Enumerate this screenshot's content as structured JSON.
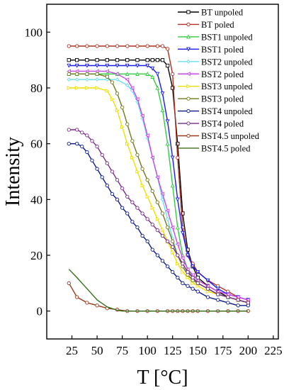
{
  "chart_data": {
    "type": "line",
    "xlabel": "T [°C]",
    "ylabel": "Intensity",
    "xlim": [
      0,
      230
    ],
    "ylim": [
      -10,
      110
    ],
    "xticks": [
      25,
      50,
      75,
      100,
      125,
      150,
      175,
      200,
      225
    ],
    "yticks": [
      0,
      20,
      40,
      60,
      80,
      100
    ],
    "grid": false,
    "legend_position": "top-right",
    "series": [
      {
        "name": "BT unpoled",
        "color": "#000000",
        "marker": "square",
        "x": [
          22,
          30,
          40,
          50,
          60,
          70,
          80,
          90,
          100,
          105,
          110,
          115,
          120,
          125,
          130,
          135,
          140,
          145,
          150,
          160,
          170,
          180,
          190,
          200
        ],
        "y": [
          90,
          90,
          90,
          90,
          90,
          90,
          90,
          90,
          90,
          90,
          90,
          90,
          88,
          80,
          60,
          35,
          22,
          16,
          12,
          9,
          7,
          5,
          4,
          3
        ]
      },
      {
        "name": "BT poled",
        "color": "#b03020",
        "marker": "circle",
        "x": [
          22,
          30,
          40,
          50,
          60,
          70,
          80,
          90,
          100,
          110,
          115,
          120,
          125,
          130,
          135,
          140,
          145,
          150,
          160,
          170,
          180,
          190,
          200
        ],
        "y": [
          95,
          95,
          95,
          95,
          95,
          95,
          95,
          95,
          95,
          95,
          95,
          94,
          85,
          55,
          30,
          20,
          17,
          14,
          11,
          9,
          7,
          5,
          4
        ]
      },
      {
        "name": "BST1 unpoled",
        "color": "#2ecc40",
        "marker": "triangle",
        "x": [
          22,
          30,
          40,
          50,
          60,
          70,
          80,
          90,
          100,
          105,
          110,
          115,
          120,
          125,
          130,
          135,
          140,
          145,
          150,
          160,
          170,
          180,
          190,
          200
        ],
        "y": [
          85,
          85,
          85,
          85,
          85,
          85,
          85,
          85,
          85,
          84,
          80,
          72,
          60,
          45,
          30,
          20,
          15,
          12,
          10,
          8,
          6,
          5,
          4,
          3
        ]
      },
      {
        "name": "BST1 poled",
        "color": "#1a1aee",
        "marker": "triangle-down",
        "x": [
          22,
          30,
          40,
          50,
          60,
          70,
          80,
          90,
          100,
          105,
          110,
          115,
          120,
          125,
          130,
          135,
          140,
          145,
          150,
          160,
          170,
          180,
          190,
          200
        ],
        "y": [
          88,
          88,
          88,
          88,
          88,
          88,
          88,
          88,
          88,
          87,
          85,
          78,
          68,
          55,
          40,
          28,
          20,
          16,
          14,
          11,
          8,
          6,
          5,
          4
        ]
      },
      {
        "name": "BST2 unpoled",
        "color": "#66e0f0",
        "marker": "diamond",
        "x": [
          22,
          30,
          40,
          50,
          60,
          70,
          80,
          85,
          90,
          95,
          100,
          105,
          110,
          115,
          120,
          125,
          130,
          135,
          140,
          145,
          150,
          160,
          170,
          180,
          190,
          200
        ],
        "y": [
          83,
          83,
          83,
          83,
          83,
          83,
          81,
          79,
          75,
          69,
          62,
          55,
          48,
          40,
          33,
          26,
          20,
          16,
          13,
          11,
          10,
          8,
          6,
          5,
          4,
          3
        ]
      },
      {
        "name": "BST2 poled",
        "color": "#cc44ee",
        "marker": "triangle-left",
        "x": [
          22,
          30,
          40,
          50,
          60,
          70,
          80,
          85,
          90,
          95,
          100,
          105,
          110,
          115,
          120,
          125,
          130,
          135,
          140,
          145,
          150,
          160,
          170,
          180,
          190,
          200
        ],
        "y": [
          86,
          86,
          86,
          86,
          86,
          85,
          83,
          80,
          76,
          70,
          63,
          55,
          48,
          42,
          36,
          30,
          24,
          19,
          15,
          13,
          11,
          9,
          7,
          6,
          5,
          4
        ]
      },
      {
        "name": "BST3 unpoled",
        "color": "#f0e000",
        "marker": "triangle-right",
        "x": [
          22,
          30,
          40,
          50,
          60,
          65,
          70,
          75,
          80,
          85,
          90,
          95,
          100,
          105,
          110,
          115,
          120,
          125,
          130,
          135,
          140,
          145,
          150,
          160,
          170,
          180,
          190,
          200
        ],
        "y": [
          80,
          80,
          80,
          80,
          79,
          76,
          72,
          66,
          60,
          55,
          50,
          45,
          41,
          37,
          33,
          29,
          25,
          21,
          17,
          14,
          12,
          10,
          9,
          7,
          6,
          5,
          4,
          3
        ]
      },
      {
        "name": "BST3 poled",
        "color": "#707820",
        "marker": "hexagon",
        "x": [
          22,
          30,
          40,
          50,
          60,
          65,
          70,
          75,
          80,
          85,
          90,
          95,
          100,
          105,
          110,
          115,
          120,
          125,
          130,
          135,
          140,
          145,
          150,
          160,
          170,
          180,
          190,
          200
        ],
        "y": [
          85,
          85,
          85,
          85,
          84,
          82,
          78,
          73,
          67,
          61,
          56,
          51,
          47,
          43,
          39,
          35,
          30,
          25,
          20,
          16,
          13,
          11,
          10,
          8,
          6,
          5,
          4,
          3
        ]
      },
      {
        "name": "BST4 unpoled",
        "color": "#0a1a8a",
        "marker": "star",
        "x": [
          22,
          30,
          35,
          40,
          45,
          50,
          55,
          60,
          65,
          70,
          75,
          80,
          85,
          90,
          95,
          100,
          105,
          110,
          115,
          120,
          125,
          130,
          135,
          140,
          145,
          150,
          160,
          170,
          180,
          190,
          200
        ],
        "y": [
          60,
          60,
          59,
          57,
          54,
          51,
          48,
          45,
          42,
          40,
          37,
          35,
          32,
          30,
          27,
          25,
          22,
          20,
          18,
          16,
          14,
          12,
          10,
          9,
          8,
          7,
          5,
          4,
          3,
          2,
          2
        ]
      },
      {
        "name": "BST4 poled",
        "color": "#7a2a8a",
        "marker": "pentagon",
        "x": [
          22,
          30,
          35,
          40,
          45,
          50,
          55,
          60,
          65,
          70,
          75,
          80,
          85,
          90,
          95,
          100,
          105,
          110,
          115,
          120,
          125,
          130,
          135,
          140,
          145,
          150,
          160,
          170,
          180,
          190,
          200
        ],
        "y": [
          65,
          65,
          64,
          63,
          61,
          59,
          56,
          53,
          50,
          47,
          44,
          41,
          39,
          37,
          35,
          33,
          31,
          29,
          27,
          25,
          23,
          20,
          17,
          14,
          12,
          10,
          8,
          6,
          5,
          4,
          3
        ]
      },
      {
        "name": "BST4.5 unpoled",
        "color": "#9a3a1a",
        "marker": "circle",
        "x": [
          22,
          30,
          40,
          50,
          60,
          70,
          80,
          90,
          100,
          110,
          120,
          125,
          130,
          135,
          140,
          145,
          150,
          160,
          170,
          180,
          190,
          200
        ],
        "y": [
          10,
          5,
          3,
          2,
          1,
          0.5,
          0,
          0,
          0,
          0,
          0,
          0,
          0,
          0,
          0,
          0,
          0,
          0,
          0,
          0,
          0,
          0
        ]
      },
      {
        "name": "BST4.5 poled",
        "color": "#3a6e1a",
        "marker": "none",
        "x": [
          22,
          30,
          40,
          50,
          60,
          70,
          75,
          80,
          90,
          100,
          110,
          120,
          130,
          140,
          150,
          160,
          170,
          180,
          190,
          200
        ],
        "y": [
          15,
          12,
          8,
          4,
          1.5,
          0.3,
          0,
          0,
          0,
          0,
          0,
          0,
          0,
          0,
          0,
          0,
          0,
          0,
          0,
          0
        ]
      }
    ]
  }
}
